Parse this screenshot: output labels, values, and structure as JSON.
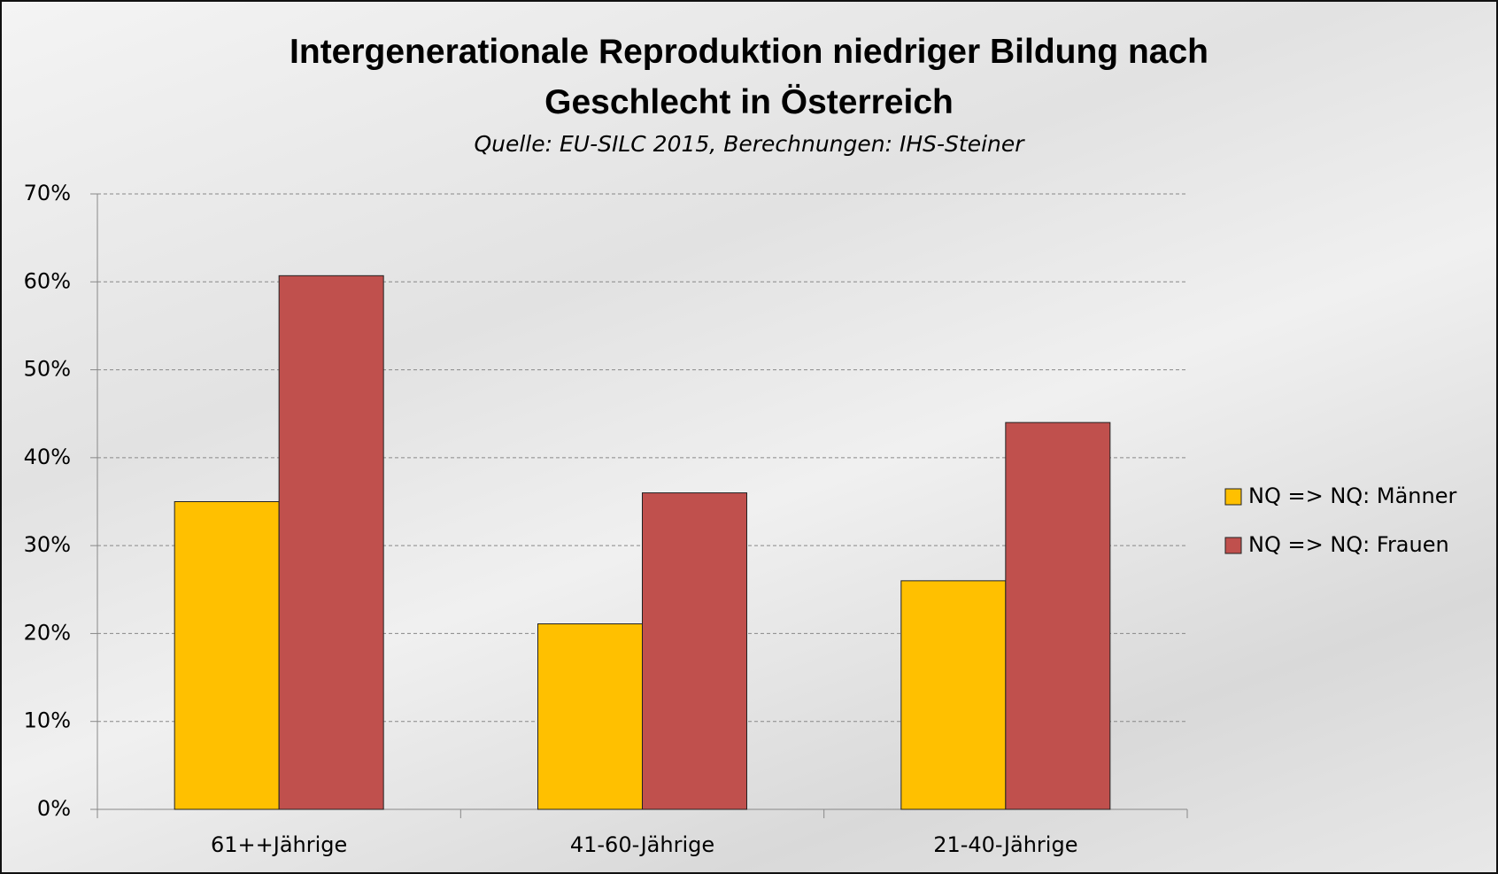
{
  "chart_data": {
    "type": "bar",
    "title": "Intergenerationale Reproduktion niedriger Bildung nach Geschlecht in Österreich",
    "subtitle": "Quelle: EU-SILC 2015, Berechnungen: IHS-Steiner",
    "categories": [
      "61++Jährige",
      "41-60-Jährige",
      "21-40-Jährige"
    ],
    "series": [
      {
        "name": "NQ => NQ: Männer",
        "color": "#ffc000",
        "values": [
          35.0,
          21.1,
          26.0
        ]
      },
      {
        "name": "NQ => NQ: Frauen",
        "color": "#c0504d",
        "values": [
          60.7,
          36.0,
          44.0
        ]
      }
    ],
    "ylim": [
      0,
      70
    ],
    "yticks": [
      {
        "value": 0,
        "label": "0%"
      },
      {
        "value": 10,
        "label": "10%"
      },
      {
        "value": 20,
        "label": "20%"
      },
      {
        "value": 30,
        "label": "30%"
      },
      {
        "value": 40,
        "label": "40%"
      },
      {
        "value": 50,
        "label": "50%"
      },
      {
        "value": 60,
        "label": "60%"
      },
      {
        "value": 70,
        "label": "70%"
      }
    ],
    "grid": true,
    "legend": "right"
  }
}
